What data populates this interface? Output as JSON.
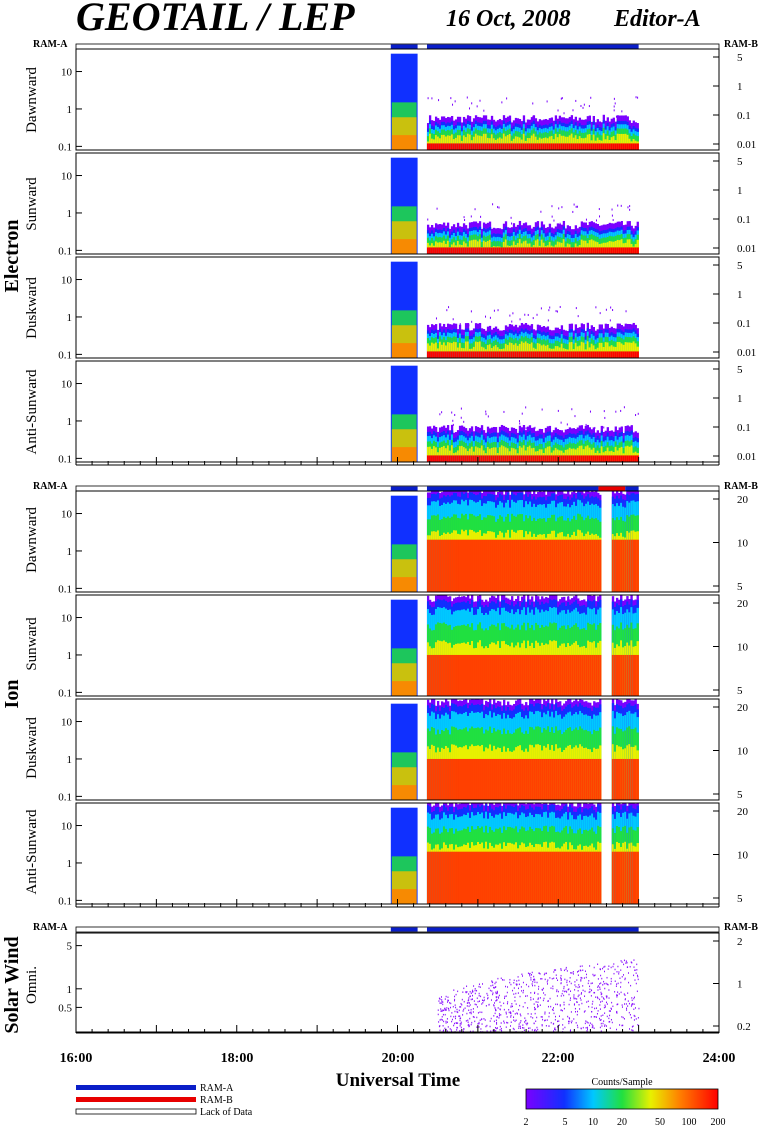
{
  "header": {
    "title": "GEOTAIL / LEP",
    "date": "16 Oct, 2008",
    "editor": "Editor-A"
  },
  "colors": {
    "ram_a": "#0a1ec8",
    "ram_b": "#e80000",
    "lack_of_data": "#ffffff"
  },
  "ram_labels": {
    "left": "RAM-A",
    "right": "RAM-B"
  },
  "groups": [
    {
      "label": "Electron"
    },
    {
      "label": "Ion"
    },
    {
      "label": "Solar Wind"
    }
  ],
  "legend": {
    "items": [
      "RAM-A",
      "RAM-B",
      "Lack of Data"
    ],
    "colorbar_title": "Counts/Sample",
    "colorbar_ticks": [
      "2",
      "5",
      "10",
      "20",
      "50",
      "100",
      "200"
    ]
  },
  "chart_data": [
    {
      "type": "heatmap",
      "group": "Electron",
      "panel": "Dawnward",
      "xlim": [
        "16:00",
        "24:00"
      ],
      "ylim": [
        0.08,
        40
      ],
      "yscale": "log",
      "y_ticks": [
        "0.1",
        "1",
        "10"
      ],
      "right_ticks": [
        "0.01",
        "0.1",
        "1",
        "5"
      ],
      "data_intervals": [
        [
          "19:55",
          "20:15"
        ],
        [
          "20:22",
          "23:00"
        ]
      ],
      "color_band_top": {
        "blue": 0.4,
        "green": 0.25,
        "yellow": 0.18,
        "red": 0.12
      }
    },
    {
      "type": "heatmap",
      "group": "Electron",
      "panel": "Sunward",
      "xlim": [
        "16:00",
        "24:00"
      ],
      "ylim": [
        0.08,
        40
      ],
      "yscale": "log",
      "y_ticks": [
        "0.1",
        "1",
        "10"
      ],
      "right_ticks": [
        "0.01",
        "0.1",
        "1",
        "5"
      ],
      "data_intervals": [
        [
          "19:55",
          "20:15"
        ],
        [
          "20:22",
          "23:00"
        ]
      ],
      "color_band_top": {
        "blue": 0.35,
        "green": 0.22,
        "yellow": 0.16,
        "red": 0.12
      }
    },
    {
      "type": "heatmap",
      "group": "Electron",
      "panel": "Duskward",
      "xlim": [
        "16:00",
        "24:00"
      ],
      "ylim": [
        0.08,
        40
      ],
      "yscale": "log",
      "y_ticks": [
        "0.1",
        "1",
        "10"
      ],
      "right_ticks": [
        "0.01",
        "0.1",
        "1",
        "5"
      ],
      "data_intervals": [
        [
          "19:55",
          "20:15"
        ],
        [
          "20:22",
          "23:00"
        ]
      ],
      "color_band_top": {
        "blue": 0.4,
        "green": 0.25,
        "yellow": 0.18,
        "red": 0.12
      }
    },
    {
      "type": "heatmap",
      "group": "Electron",
      "panel": "Anti-Sunward",
      "xlim": [
        "16:00",
        "24:00"
      ],
      "ylim": [
        0.08,
        40
      ],
      "yscale": "log",
      "y_ticks": [
        "0.1",
        "1",
        "10"
      ],
      "right_ticks": [
        "0.01",
        "0.1",
        "1",
        "5"
      ],
      "data_intervals": [
        [
          "19:55",
          "20:15"
        ],
        [
          "20:22",
          "23:00"
        ]
      ],
      "color_band_top": {
        "blue": 0.45,
        "green": 0.25,
        "yellow": 0.18,
        "red": 0.12
      }
    },
    {
      "type": "heatmap",
      "group": "Ion",
      "panel": "Dawnward",
      "xlim": [
        "16:00",
        "24:00"
      ],
      "ylim": [
        0.08,
        40
      ],
      "yscale": "log",
      "y_ticks": [
        "0.1",
        "1",
        "10"
      ],
      "right_ticks": [
        "5",
        "10",
        "20"
      ],
      "data_intervals": [
        [
          "19:55",
          "20:15"
        ],
        [
          "20:22",
          "22:32"
        ],
        [
          "22:40",
          "23:00"
        ]
      ],
      "color_band_top": {
        "blue": 30,
        "green": 8,
        "yellow": 3,
        "red": 2
      }
    },
    {
      "type": "heatmap",
      "group": "Ion",
      "panel": "Sunward",
      "xlim": [
        "16:00",
        "24:00"
      ],
      "ylim": [
        0.08,
        40
      ],
      "yscale": "log",
      "y_ticks": [
        "0.1",
        "1",
        "10"
      ],
      "right_ticks": [
        "5",
        "10",
        "20"
      ],
      "data_intervals": [
        [
          "19:55",
          "20:15"
        ],
        [
          "20:22",
          "22:32"
        ],
        [
          "22:40",
          "23:00"
        ]
      ],
      "color_band_top": {
        "blue": 25,
        "green": 6,
        "yellow": 2,
        "red": 1
      }
    },
    {
      "type": "heatmap",
      "group": "Ion",
      "panel": "Duskward",
      "xlim": [
        "16:00",
        "24:00"
      ],
      "ylim": [
        0.08,
        40
      ],
      "yscale": "log",
      "y_ticks": [
        "0.1",
        "1",
        "10"
      ],
      "right_ticks": [
        "5",
        "10",
        "20"
      ],
      "data_intervals": [
        [
          "19:55",
          "20:15"
        ],
        [
          "20:22",
          "22:32"
        ],
        [
          "22:40",
          "23:00"
        ]
      ],
      "color_band_top": {
        "blue": 25,
        "green": 6,
        "yellow": 2,
        "red": 1
      }
    },
    {
      "type": "heatmap",
      "group": "Ion",
      "panel": "Anti-Sunward",
      "xlim": [
        "16:00",
        "24:00"
      ],
      "ylim": [
        0.08,
        40
      ],
      "yscale": "log",
      "y_ticks": [
        "0.1",
        "1",
        "10"
      ],
      "right_ticks": [
        "5",
        "10",
        "20"
      ],
      "data_intervals": [
        [
          "19:55",
          "20:15"
        ],
        [
          "20:22",
          "22:32"
        ],
        [
          "22:40",
          "23:00"
        ]
      ],
      "color_band_top": {
        "blue": 30,
        "green": 8,
        "yellow": 3,
        "red": 2
      }
    },
    {
      "type": "scatter",
      "group": "Solar Wind",
      "panel": "Omni.",
      "xlim": [
        "16:00",
        "24:00"
      ],
      "ylim": [
        0.2,
        8
      ],
      "yscale": "log",
      "y_ticks": [
        "0.5",
        "1",
        "5"
      ],
      "right_ticks": [
        "0.2",
        "1",
        "2"
      ],
      "data_intervals": [
        [
          "20:30",
          "23:00"
        ]
      ]
    }
  ],
  "ram_bars": [
    {
      "segments": [
        [
          "19:55",
          "20:15",
          "ram_a"
        ],
        [
          "20:22",
          "23:00",
          "ram_a"
        ]
      ]
    },
    {
      "segments": [
        [
          "19:55",
          "20:15",
          "ram_a"
        ],
        [
          "20:22",
          "22:30",
          "ram_a"
        ],
        [
          "22:30",
          "22:50",
          "ram_b"
        ],
        [
          "22:50",
          "23:00",
          "ram_a"
        ]
      ]
    },
    {
      "segments": [
        [
          "19:55",
          "20:15",
          "ram_a"
        ],
        [
          "20:22",
          "23:00",
          "ram_a"
        ]
      ]
    }
  ],
  "x_axis": {
    "label": "Universal Time",
    "ticks": [
      "16:00",
      "18:00",
      "20:00",
      "22:00",
      "24:00"
    ]
  }
}
